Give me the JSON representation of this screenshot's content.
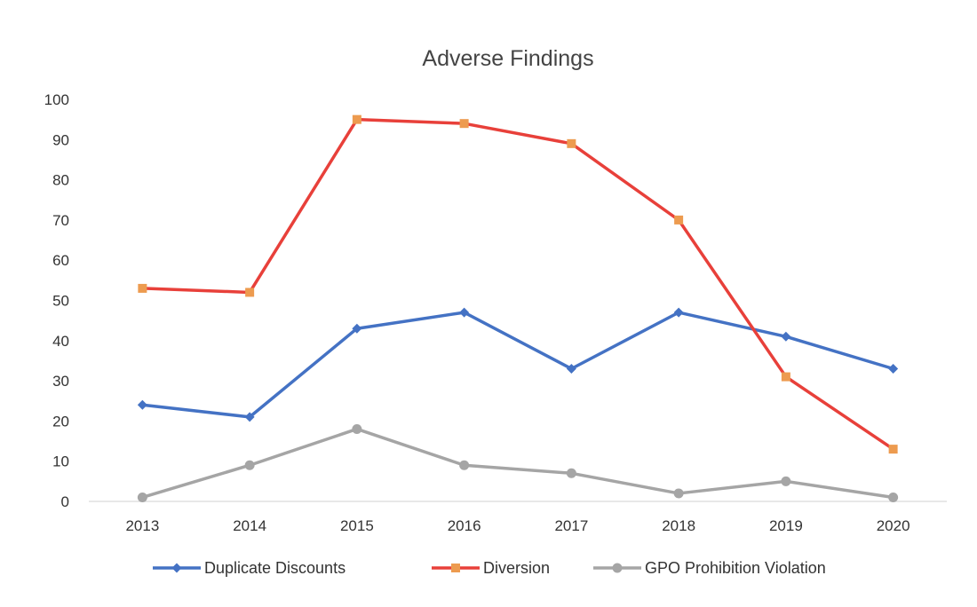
{
  "chart_data": {
    "type": "line",
    "title": "Adverse Findings",
    "xlabel": "",
    "ylabel": "",
    "categories": [
      "2013",
      "2014",
      "2015",
      "2016",
      "2017",
      "2018",
      "2019",
      "2020"
    ],
    "ylim": [
      0,
      100
    ],
    "yticks": [
      0,
      10,
      20,
      30,
      40,
      50,
      60,
      70,
      80,
      90,
      100
    ],
    "grid": false,
    "legend_position": "bottom",
    "series": [
      {
        "name": "Duplicate Discounts",
        "values": [
          24,
          21,
          43,
          47,
          33,
          47,
          41,
          33
        ],
        "color": "#4472c4",
        "marker": "diamond"
      },
      {
        "name": "Diversion",
        "values": [
          53,
          52,
          95,
          94,
          89,
          70,
          31,
          13
        ],
        "color": "#e8403a",
        "marker_color": "#ed9b4f",
        "marker": "square"
      },
      {
        "name": "GPO Prohibition Violation",
        "values": [
          1,
          9,
          18,
          9,
          7,
          2,
          5,
          1
        ],
        "color": "#a5a5a5",
        "marker": "circle"
      }
    ]
  }
}
